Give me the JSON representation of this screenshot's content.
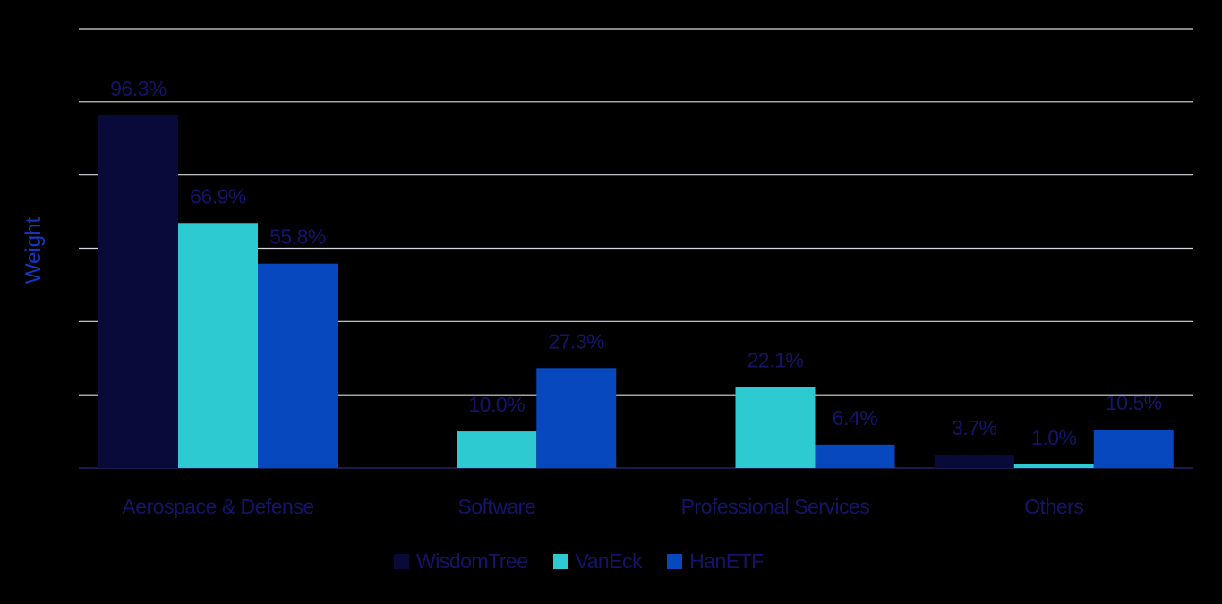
{
  "chart_data": {
    "type": "bar",
    "title": "",
    "xlabel": "",
    "ylabel": "Weight",
    "ylim": [
      0,
      120
    ],
    "y_gridline_step": 20,
    "grid": true,
    "legend_placement": "bottom-center",
    "categories": [
      "Aerospace & Defense",
      "Software",
      "Professional Services",
      "Others"
    ],
    "series": [
      {
        "name": "WisdomTree",
        "color": "#0a0a3a",
        "values": [
          96.3,
          0,
          0,
          3.7
        ],
        "labels": [
          "96.3%",
          "",
          "",
          "3.7%"
        ]
      },
      {
        "name": "VanEck",
        "color": "#2ecad2",
        "values": [
          66.9,
          10.0,
          22.1,
          1.0
        ],
        "labels": [
          "66.9%",
          "10.0%",
          "22.1%",
          "1.0%"
        ]
      },
      {
        "name": "HanETF",
        "color": "#0748be",
        "values": [
          55.8,
          27.3,
          6.4,
          10.5
        ],
        "labels": [
          "55.8%",
          "27.3%",
          "6.4%",
          "10.5%"
        ]
      }
    ],
    "colors": {
      "background": "#000000",
      "grid": "#d8d8e0",
      "label_text": "#14146a",
      "ylabel": "#1238c8"
    }
  }
}
